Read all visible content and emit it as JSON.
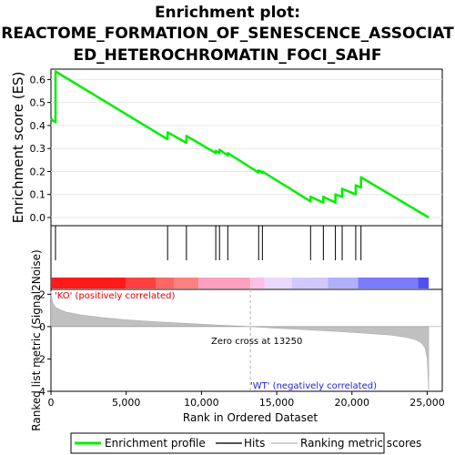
{
  "chart_data": {
    "type": "line",
    "title_lines": [
      "Enrichment plot:",
      "REACTOME_FORMATION_OF_SENESCENCE_ASSOCIAT",
      "ED_HETEROCHROMATIN_FOCI_SAHF"
    ],
    "top_panel": {
      "ylabel": "Enrichment score (ES)",
      "ylim": [
        0,
        0.65
      ],
      "yticks": [
        "0.0",
        "0.1",
        "0.2",
        "0.3",
        "0.4",
        "0.5",
        "0.6"
      ],
      "ytick_values": [
        0.0,
        0.1,
        0.2,
        0.3,
        0.4,
        0.5,
        0.6
      ],
      "series": [
        {
          "name": "Enrichment profile",
          "color": "#00ee00",
          "x": [
            0,
            150,
            150,
            300,
            300,
            7750,
            7750,
            9000,
            9000,
            10950,
            10950,
            11200,
            11200,
            11750,
            11750,
            13800,
            13800,
            14050,
            14050,
            17250,
            17250,
            18100,
            18100,
            18900,
            18900,
            19350,
            19350,
            20250,
            20250,
            20600,
            20600,
            25100
          ],
          "y": [
            0.43,
            0.42,
            0.42,
            0.415,
            0.635,
            0.34,
            0.37,
            0.325,
            0.355,
            0.28,
            0.29,
            0.28,
            0.295,
            0.27,
            0.28,
            0.195,
            0.205,
            0.195,
            0.2,
            0.07,
            0.09,
            0.065,
            0.09,
            0.065,
            0.1,
            0.09,
            0.125,
            0.1,
            0.14,
            0.13,
            0.175,
            0.0
          ]
        }
      ]
    },
    "hits": {
      "name": "Hits",
      "x": [
        300,
        7750,
        9000,
        10950,
        11200,
        11750,
        13800,
        14050,
        17250,
        18100,
        18900,
        19350,
        20250,
        20600
      ]
    },
    "rank_bar": {
      "colors": [
        "#ff1a1a",
        "#ff4040",
        "#ff6666",
        "#ff8080",
        "#ffa0c0",
        "#ffc0e8",
        "#ecd8ff",
        "#d0c8ff",
        "#b0b0ff",
        "#7b7bff",
        "#5050ef",
        "#2020d0"
      ],
      "breaks": [
        0,
        5000,
        7000,
        8200,
        9800,
        13250,
        14200,
        16000,
        18400,
        20400,
        24400,
        25100
      ]
    },
    "bottom_panel": {
      "ylabel": "Ranked list metric (Signal2Noise)",
      "ylim": [
        -4,
        2.3
      ],
      "yticks": [
        "-4",
        "-2",
        "0",
        "2"
      ],
      "ytick_values": [
        -4,
        -2,
        0,
        2
      ],
      "ko_label": "'KO' (positively correlated)",
      "wt_label": "'WT' (negatively correlated)",
      "zero_cross_label": "Zero cross at 13250",
      "zero_cross": 13250,
      "metric_profile": {
        "x": [
          0,
          100,
          300,
          600,
          1000,
          2000,
          3500,
          5000,
          7000,
          9000,
          11000,
          13250,
          15000,
          17000,
          19000,
          21000,
          22500,
          23500,
          24200,
          24600,
          24850,
          25000,
          25050,
          25100
        ],
        "y": [
          2.2,
          1.5,
          1.2,
          1.05,
          0.9,
          0.72,
          0.55,
          0.42,
          0.3,
          0.2,
          0.1,
          0.0,
          -0.1,
          -0.2,
          -0.3,
          -0.42,
          -0.52,
          -0.65,
          -0.8,
          -1.0,
          -1.3,
          -2.0,
          -3.0,
          -3.9
        ]
      }
    },
    "xlabel": "Rank in Ordered Dataset",
    "xlim": [
      0,
      26000
    ],
    "xticks": [
      "0",
      "5,000",
      "10,000",
      "15,000",
      "20,000",
      "25,000"
    ],
    "xtick_values": [
      0,
      5000,
      10000,
      15000,
      20000,
      25000
    ],
    "legend": {
      "placement": "bottom",
      "entries": [
        "Enrichment profile",
        "Hits",
        "Ranking metric scores"
      ]
    },
    "colors": {
      "profile": "#00ee00",
      "hits": "#000000",
      "metric_fill": "#c0c0c0",
      "ko_text": "#dd0000",
      "wt_text": "#2222cc",
      "zero_line": "#b0b0b0"
    }
  }
}
